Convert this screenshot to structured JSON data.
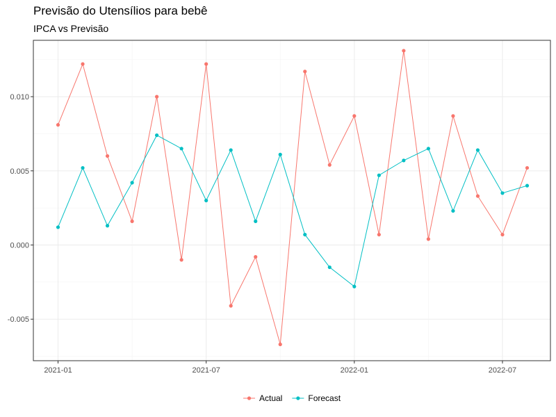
{
  "chart_data": {
    "type": "line",
    "title": "Previsão do Utensílios para bebê",
    "subtitle": "IPCA vs Previsão",
    "xlabel": "",
    "ylabel": "",
    "x": [
      "2021-01",
      "2021-02",
      "2021-03",
      "2021-04",
      "2021-05",
      "2021-06",
      "2021-07",
      "2021-08",
      "2021-09",
      "2021-10",
      "2021-11",
      "2021-12",
      "2022-01",
      "2022-02",
      "2022-03",
      "2022-04",
      "2022-05",
      "2022-06",
      "2022-07",
      "2022-08"
    ],
    "x_ticks": [
      "2021-01",
      "2021-07",
      "2022-01",
      "2022-07"
    ],
    "y_ticks": [
      -0.005,
      0.0,
      0.005,
      0.01
    ],
    "y_tick_labels": [
      "-0.005",
      "0.000",
      "0.005",
      "0.010"
    ],
    "ylim": [
      -0.0078,
      0.0138
    ],
    "grid": true,
    "legend_position": "bottom",
    "series": [
      {
        "name": "Actual",
        "color": "#F8766D",
        "values": [
          0.0081,
          0.0122,
          0.006,
          0.0016,
          0.01,
          -0.001,
          0.0122,
          -0.0041,
          -0.0008,
          -0.0067,
          0.0117,
          0.0054,
          0.0087,
          0.0007,
          0.0131,
          0.0004,
          0.0087,
          0.0033,
          0.0007,
          0.0052
        ]
      },
      {
        "name": "Forecast",
        "color": "#00BFC4",
        "values": [
          0.0012,
          0.0052,
          0.0013,
          0.0042,
          0.0074,
          0.0065,
          0.003,
          0.0064,
          0.0016,
          0.0061,
          0.0007,
          -0.0015,
          -0.0028,
          0.0047,
          0.0057,
          0.0065,
          0.0023,
          0.0064,
          0.0035,
          0.004
        ]
      }
    ]
  }
}
